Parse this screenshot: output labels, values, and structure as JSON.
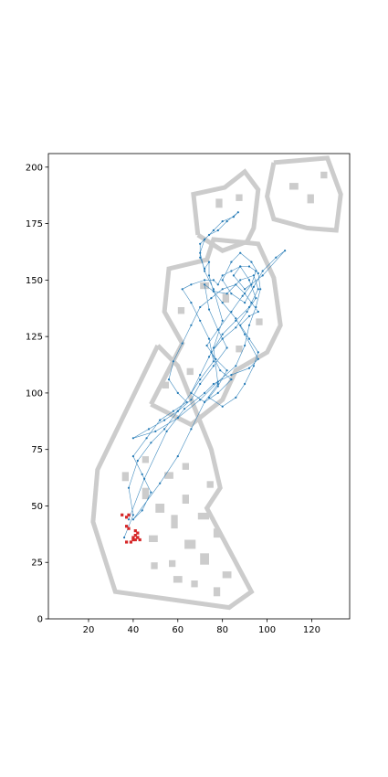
{
  "chart_data": {
    "type": "scatter",
    "title": "",
    "xlabel": "",
    "ylabel": "",
    "xlim": [
      2,
      137
    ],
    "ylim": [
      0,
      206
    ],
    "x_ticks": [
      20,
      40,
      60,
      80,
      100,
      120
    ],
    "y_ticks": [
      0,
      25,
      50,
      75,
      100,
      125,
      150,
      175,
      200
    ],
    "grid": false,
    "legend": "none",
    "colors": {
      "map_walls": "#cccccc",
      "trajectory": "#1f77b4",
      "start_points": "#d62728"
    },
    "series": [
      {
        "role": "trajectory",
        "style": "line+markers",
        "points": [
          [
            38,
            44
          ],
          [
            45,
            62
          ],
          [
            55,
            83
          ],
          [
            63,
            93
          ],
          [
            72,
            100
          ],
          [
            76,
            104
          ],
          [
            84,
            108
          ],
          [
            92,
            111
          ],
          [
            96,
            115
          ],
          [
            90,
            126
          ],
          [
            86,
            133
          ],
          [
            80,
            140
          ],
          [
            76,
            145
          ],
          [
            72,
            148
          ],
          [
            74,
            137
          ],
          [
            78,
            128
          ],
          [
            82,
            120
          ],
          [
            76,
            112
          ],
          [
            70,
            104
          ],
          [
            66,
            97
          ],
          [
            60,
            92
          ],
          [
            54,
            88
          ],
          [
            47,
            84
          ],
          [
            40,
            80
          ],
          [
            50,
            83
          ],
          [
            60,
            89
          ],
          [
            70,
            97
          ],
          [
            78,
            105
          ],
          [
            86,
            112
          ],
          [
            90,
            121
          ],
          [
            92,
            130
          ],
          [
            95,
            138
          ],
          [
            97,
            146
          ],
          [
            96,
            153
          ],
          [
            93,
            158
          ],
          [
            88,
            162
          ],
          [
            84,
            158
          ],
          [
            80,
            150
          ],
          [
            84,
            144
          ],
          [
            90,
            140
          ],
          [
            94,
            147
          ],
          [
            98,
            154
          ],
          [
            104,
            160
          ],
          [
            108,
            163
          ],
          [
            98,
            152
          ],
          [
            90,
            146
          ],
          [
            85,
            152
          ],
          [
            88,
            156
          ],
          [
            92,
            150
          ],
          [
            95,
            142
          ],
          [
            91,
            136
          ],
          [
            86,
            129
          ],
          [
            80,
            124
          ],
          [
            75,
            118
          ],
          [
            79,
            110
          ],
          [
            84,
            106
          ],
          [
            78,
            100
          ],
          [
            72,
            96
          ],
          [
            66,
            100
          ],
          [
            70,
            106
          ],
          [
            76,
            114
          ],
          [
            74,
            124
          ],
          [
            70,
            132
          ],
          [
            66,
            140
          ],
          [
            62,
            146
          ],
          [
            66,
            148
          ],
          [
            72,
            150
          ],
          [
            76,
            150
          ],
          [
            78,
            148
          ],
          [
            80,
            152
          ],
          [
            84,
            154
          ],
          [
            88,
            156
          ],
          [
            92,
            156
          ],
          [
            95,
            154
          ],
          [
            93,
            148
          ],
          [
            89,
            143
          ],
          [
            84,
            136
          ],
          [
            78,
            128
          ],
          [
            73,
            121
          ],
          [
            77,
            115
          ],
          [
            82,
            110
          ],
          [
            78,
            103
          ],
          [
            74,
            98
          ],
          [
            80,
            94
          ],
          [
            86,
            98
          ],
          [
            90,
            104
          ],
          [
            94,
            112
          ],
          [
            96,
            118
          ],
          [
            92,
            124
          ],
          [
            88,
            130
          ],
          [
            92,
            134
          ],
          [
            96,
            136
          ],
          [
            93,
            140
          ],
          [
            90,
            144
          ],
          [
            86,
            148
          ],
          [
            80,
            146
          ],
          [
            75,
            142
          ],
          [
            70,
            138
          ],
          [
            66,
            130
          ],
          [
            62,
            122
          ],
          [
            58,
            114
          ],
          [
            56,
            106
          ],
          [
            60,
            100
          ],
          [
            64,
            96
          ],
          [
            58,
            92
          ],
          [
            52,
            88
          ],
          [
            46,
            80
          ],
          [
            40,
            72
          ],
          [
            44,
            64
          ],
          [
            48,
            56
          ],
          [
            44,
            48
          ],
          [
            40,
            44
          ],
          [
            52,
            60
          ],
          [
            60,
            72
          ],
          [
            66,
            84
          ],
          [
            72,
            96
          ],
          [
            78,
            104
          ],
          [
            76,
            120
          ],
          [
            80,
            132
          ],
          [
            76,
            146
          ],
          [
            72,
            154
          ],
          [
            70,
            162
          ],
          [
            72,
            168
          ],
          [
            76,
            172
          ],
          [
            80,
            176
          ],
          [
            85,
            178
          ],
          [
            87,
            180
          ],
          [
            82,
            176
          ],
          [
            78,
            172
          ],
          [
            74,
            170
          ],
          [
            70,
            166
          ],
          [
            70,
            160
          ],
          [
            72,
            155
          ],
          [
            74,
            158
          ],
          [
            74,
            152
          ],
          [
            76,
            145
          ],
          [
            82,
            144
          ],
          [
            88,
            150
          ],
          [
            94,
            152
          ],
          [
            96,
            146
          ],
          [
            92,
            138
          ],
          [
            86,
            132
          ],
          [
            80,
            126
          ],
          [
            74,
            116
          ],
          [
            70,
            108
          ],
          [
            66,
            100
          ],
          [
            60,
            92
          ],
          [
            54,
            84
          ],
          [
            48,
            78
          ],
          [
            42,
            70
          ],
          [
            38,
            58
          ],
          [
            40,
            46
          ],
          [
            36,
            36
          ]
        ]
      },
      {
        "role": "start_points",
        "style": "markers",
        "points": [
          [
            35,
            46
          ],
          [
            37,
            45
          ],
          [
            38,
            46
          ],
          [
            37,
            41
          ],
          [
            38,
            40
          ],
          [
            41,
            39
          ],
          [
            42,
            38
          ],
          [
            41,
            37
          ],
          [
            42,
            36
          ],
          [
            43,
            35
          ],
          [
            41,
            35
          ],
          [
            40,
            35
          ],
          [
            39,
            34
          ],
          [
            37,
            34
          ],
          [
            40,
            36
          ],
          [
            42,
            36
          ]
        ]
      }
    ]
  }
}
